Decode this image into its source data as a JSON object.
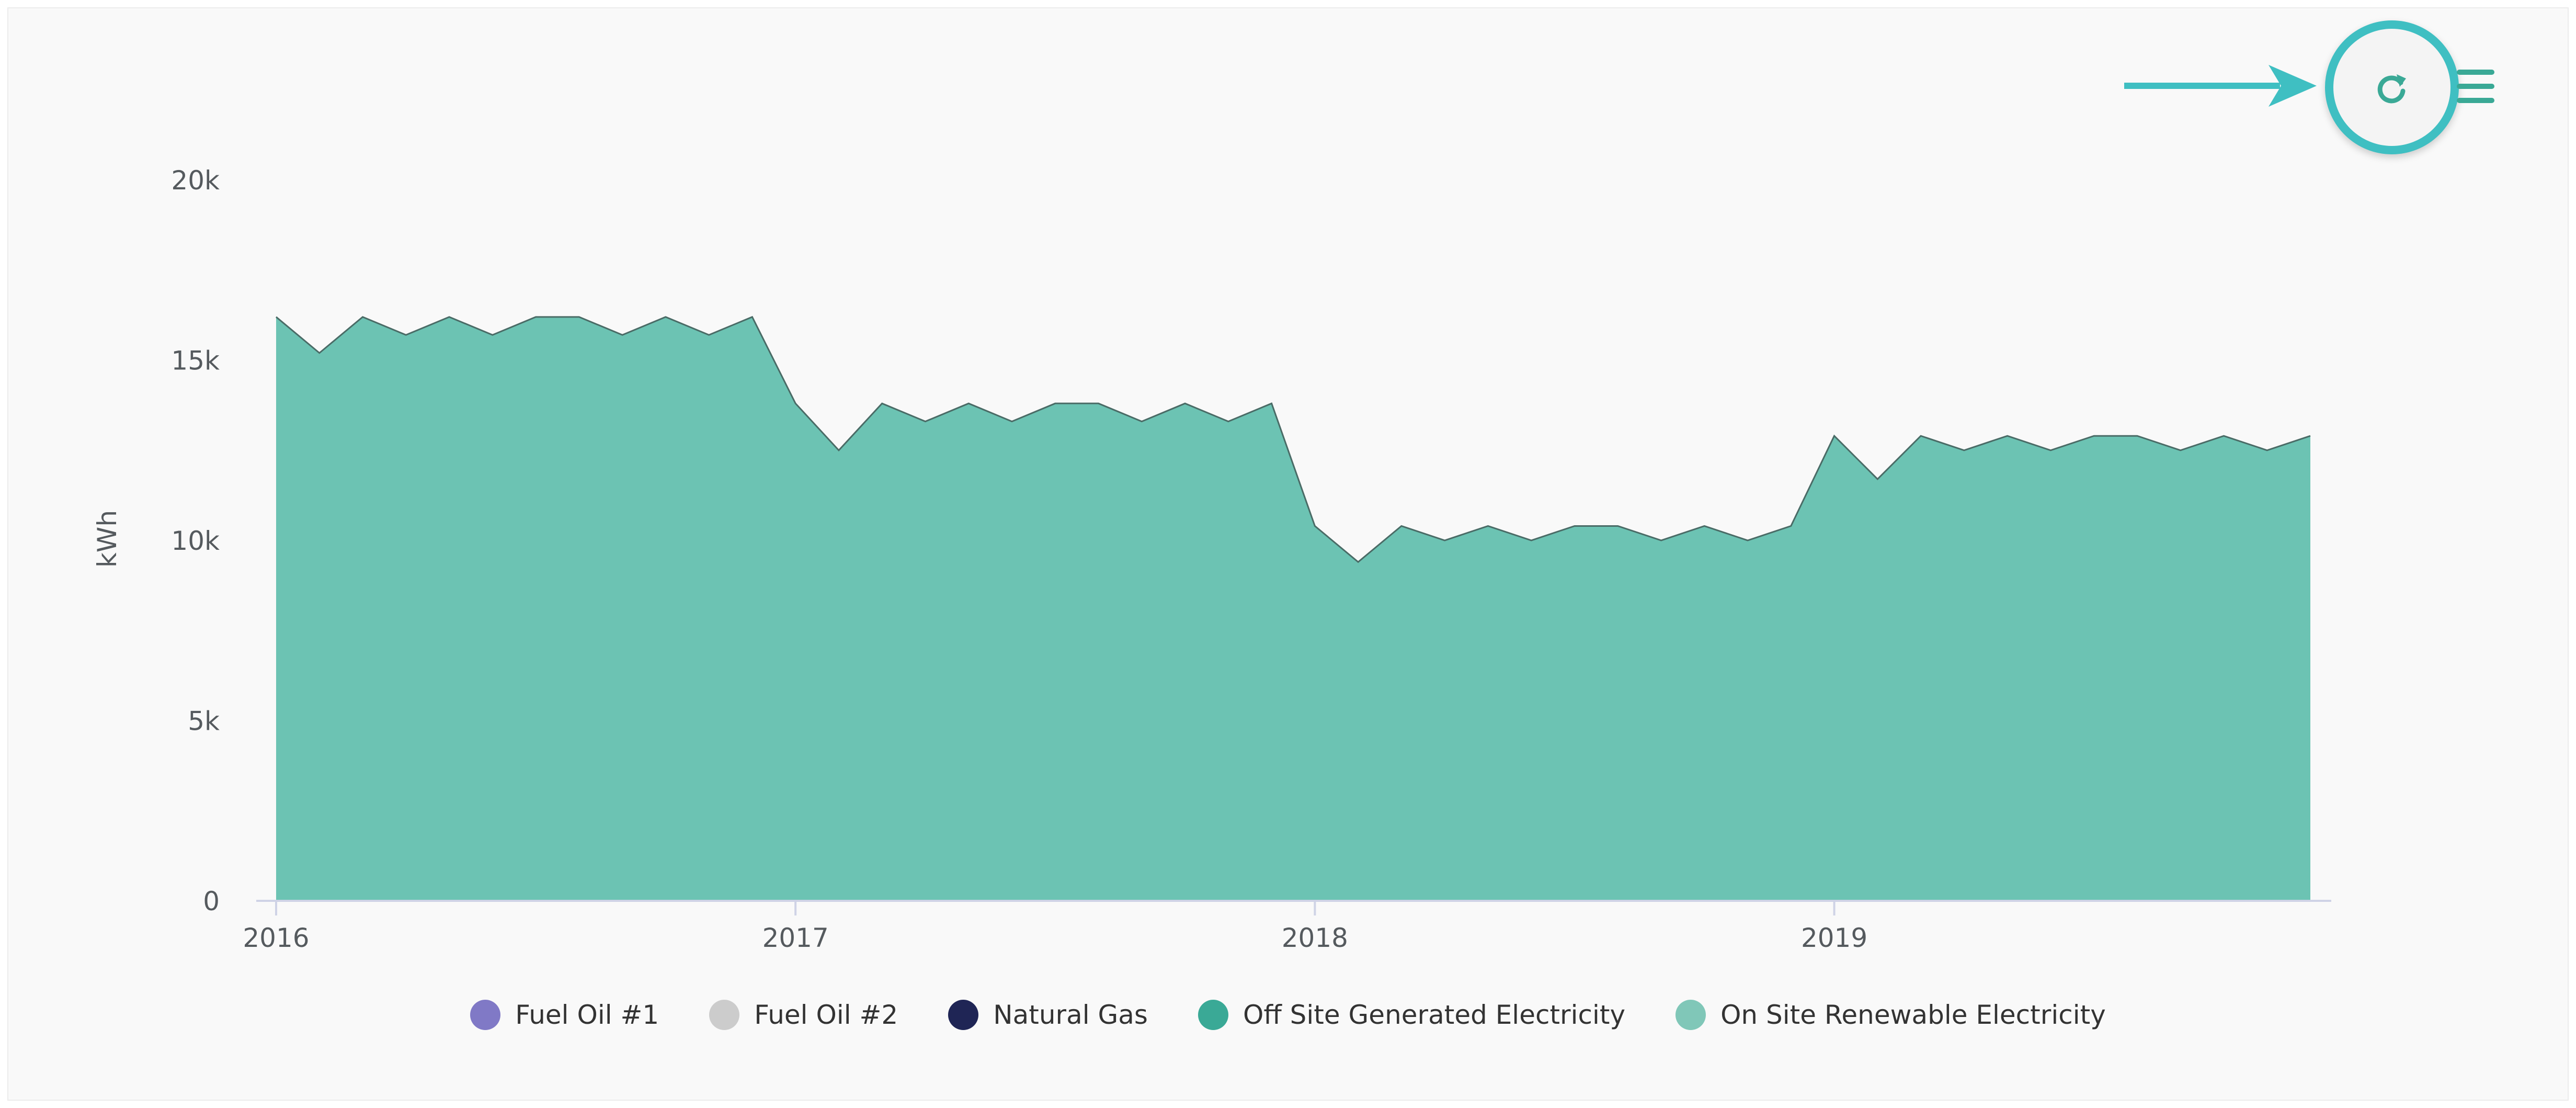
{
  "chart_data": {
    "type": "area",
    "ylabel": "kWh",
    "ylim": [
      0,
      20000
    ],
    "yticks": [
      {
        "value": 0,
        "label": "0"
      },
      {
        "value": 5000,
        "label": "5k"
      },
      {
        "value": 10000,
        "label": "10k"
      },
      {
        "value": 15000,
        "label": "15k"
      },
      {
        "value": 20000,
        "label": "20k"
      }
    ],
    "xlim": [
      "2016-01",
      "2019-12"
    ],
    "xticks": [
      {
        "value": "2016-01",
        "label": "2016"
      },
      {
        "value": "2017-01",
        "label": "2017"
      },
      {
        "value": "2018-01",
        "label": "2018"
      },
      {
        "value": "2019-01",
        "label": "2019"
      }
    ],
    "x": [
      "2016-01",
      "2016-02",
      "2016-03",
      "2016-04",
      "2016-05",
      "2016-06",
      "2016-07",
      "2016-08",
      "2016-09",
      "2016-10",
      "2016-11",
      "2016-12",
      "2017-01",
      "2017-02",
      "2017-03",
      "2017-04",
      "2017-05",
      "2017-06",
      "2017-07",
      "2017-08",
      "2017-09",
      "2017-10",
      "2017-11",
      "2017-12",
      "2018-01",
      "2018-02",
      "2018-03",
      "2018-04",
      "2018-05",
      "2018-06",
      "2018-07",
      "2018-08",
      "2018-09",
      "2018-10",
      "2018-11",
      "2018-12",
      "2019-01",
      "2019-02",
      "2019-03",
      "2019-04",
      "2019-05",
      "2019-06",
      "2019-07",
      "2019-08",
      "2019-09",
      "2019-10",
      "2019-11",
      "2019-12"
    ],
    "series": [
      {
        "name": "Fuel Oil #1",
        "color": "#8079c6",
        "values": [
          0,
          0,
          0,
          0,
          0,
          0,
          0,
          0,
          0,
          0,
          0,
          0,
          0,
          0,
          0,
          0,
          0,
          0,
          0,
          0,
          0,
          0,
          0,
          0,
          0,
          0,
          0,
          0,
          0,
          0,
          0,
          0,
          0,
          0,
          0,
          0,
          0,
          0,
          0,
          0,
          0,
          0,
          0,
          0,
          0,
          0,
          0,
          0
        ]
      },
      {
        "name": "Fuel Oil #2",
        "color": "#cccccc",
        "values": [
          0,
          0,
          0,
          0,
          0,
          0,
          0,
          0,
          0,
          0,
          0,
          0,
          0,
          0,
          0,
          0,
          0,
          0,
          0,
          0,
          0,
          0,
          0,
          0,
          0,
          0,
          0,
          0,
          0,
          0,
          0,
          0,
          0,
          0,
          0,
          0,
          0,
          0,
          0,
          0,
          0,
          0,
          0,
          0,
          0,
          0,
          0,
          0
        ]
      },
      {
        "name": "Natural Gas",
        "color": "#1f2555",
        "values": [
          0,
          0,
          0,
          0,
          0,
          0,
          0,
          0,
          0,
          0,
          0,
          0,
          0,
          0,
          0,
          0,
          0,
          0,
          0,
          0,
          0,
          0,
          0,
          0,
          0,
          0,
          0,
          0,
          0,
          0,
          0,
          0,
          0,
          0,
          0,
          0,
          0,
          0,
          0,
          0,
          0,
          0,
          0,
          0,
          0,
          0,
          0,
          0
        ]
      },
      {
        "name": "Off Site Generated Electricity",
        "color": "#3aa996",
        "values": [
          16200,
          15200,
          16200,
          15700,
          16200,
          15700,
          16200,
          16200,
          15700,
          16200,
          15700,
          16200,
          13800,
          12500,
          13800,
          13300,
          13800,
          13300,
          13800,
          13800,
          13300,
          13800,
          13300,
          13800,
          10400,
          9400,
          10400,
          10000,
          10400,
          10000,
          10400,
          10400,
          10000,
          10400,
          10000,
          10400,
          12900,
          11700,
          12900,
          12500,
          12900,
          12500,
          12900,
          12900,
          12500,
          12900,
          12500,
          12900
        ]
      },
      {
        "name": "On Site Renewable Electricity",
        "color": "#80c7b8",
        "values": [
          0,
          0,
          0,
          0,
          0,
          0,
          0,
          0,
          0,
          0,
          0,
          0,
          0,
          0,
          0,
          0,
          0,
          0,
          0,
          0,
          0,
          0,
          0,
          0,
          0,
          0,
          0,
          0,
          0,
          0,
          0,
          0,
          0,
          0,
          0,
          0,
          0,
          0,
          0,
          0,
          0,
          0,
          0,
          0,
          0,
          0,
          0,
          0
        ]
      }
    ],
    "area_fill": "#6cc3b3",
    "area_stroke": "#4a6b66",
    "grid": false,
    "legend_position": "bottom-center"
  },
  "toolbar": {
    "refresh_icon": "refresh-icon",
    "menu_icon": "hamburger-menu-icon",
    "highlight_color": "#3fbfc2"
  }
}
